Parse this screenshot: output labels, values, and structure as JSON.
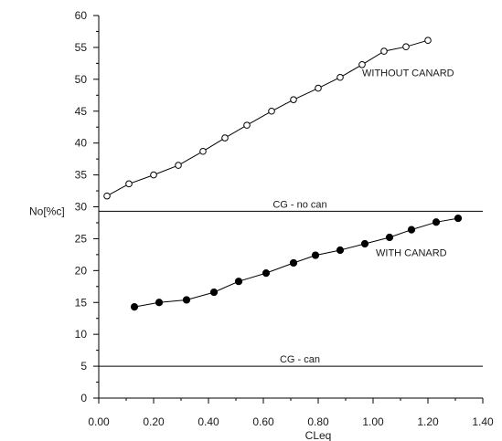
{
  "chart_data": {
    "type": "line",
    "title": "",
    "xlabel": "CLeq",
    "ylabel": "No[%c]",
    "xlim": [
      0,
      1.4
    ],
    "ylim": [
      0,
      60
    ],
    "xticks": [
      0,
      0.2,
      0.4,
      0.6,
      0.8,
      1.0,
      1.2,
      1.4
    ],
    "xtick_labels": [
      "0.00",
      "0.20",
      "0.40",
      "0.60",
      "0.80",
      "1.00",
      "1.20",
      "1.40"
    ],
    "yticks": [
      0,
      5,
      10,
      15,
      20,
      25,
      30,
      35,
      40,
      45,
      50,
      55,
      60
    ],
    "ytick_labels": [
      "0",
      "5",
      "10",
      "15",
      "20",
      "25",
      "30",
      "35",
      "40",
      "45",
      "50",
      "55",
      "60"
    ],
    "grid": false,
    "series": [
      {
        "name": "WITHOUT CANARD",
        "marker": "open-circle",
        "x": [
          0.03,
          0.11,
          0.2,
          0.29,
          0.38,
          0.46,
          0.54,
          0.63,
          0.71,
          0.8,
          0.88,
          0.96,
          1.04,
          1.12,
          1.2
        ],
        "y": [
          31.7,
          33.6,
          35.0,
          36.5,
          38.7,
          40.8,
          42.8,
          45.0,
          46.8,
          48.6,
          50.3,
          52.3,
          54.4,
          55.1,
          56.1
        ]
      },
      {
        "name": "WITH CANARD",
        "marker": "filled-circle",
        "x": [
          0.13,
          0.22,
          0.32,
          0.42,
          0.51,
          0.61,
          0.71,
          0.79,
          0.88,
          0.97,
          1.06,
          1.14,
          1.23,
          1.31
        ],
        "y": [
          14.3,
          15.0,
          15.4,
          16.6,
          18.3,
          19.6,
          21.2,
          22.4,
          23.2,
          24.2,
          25.2,
          26.4,
          27.6,
          28.2
        ]
      }
    ],
    "reference_lines": [
      {
        "label": "CG - no can",
        "y": 29.3
      },
      {
        "label": "CG - can",
        "y": 5.0
      }
    ],
    "annotations": [
      {
        "text": "WITHOUT CANARD",
        "x": 0.96,
        "y": 50.5
      },
      {
        "text": "WITH CANARD",
        "x": 1.01,
        "y": 22.3
      }
    ]
  }
}
